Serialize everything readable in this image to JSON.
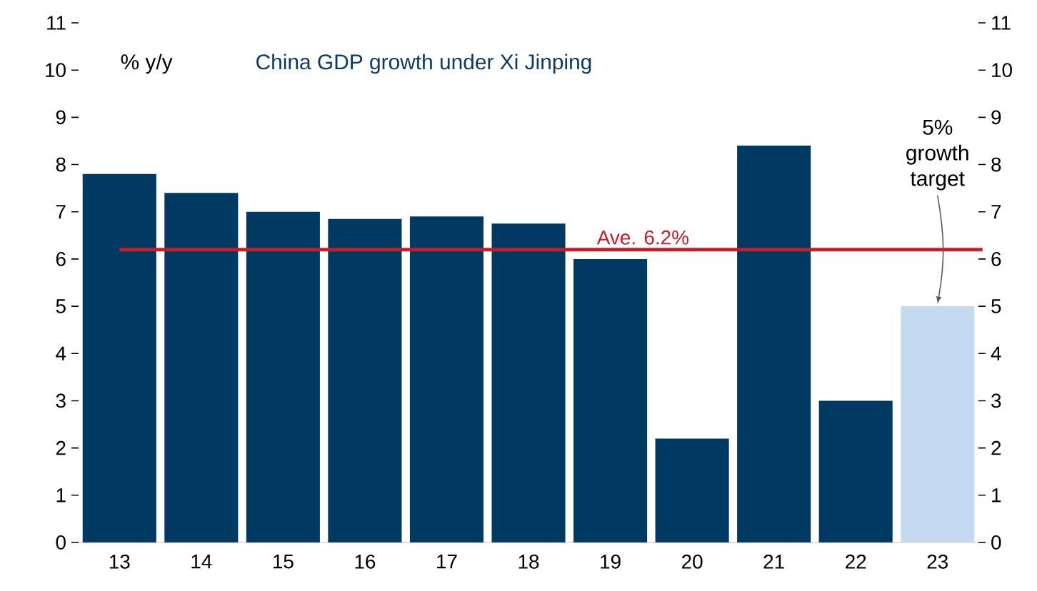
{
  "chart_data": {
    "type": "bar",
    "title": "China GDP growth under Xi Jinping",
    "ylabel": "% y/y",
    "categories": [
      "13",
      "14",
      "15",
      "16",
      "17",
      "18",
      "19",
      "20",
      "21",
      "22",
      "23"
    ],
    "values": [
      7.8,
      7.4,
      7.0,
      6.85,
      6.9,
      6.75,
      6.0,
      2.2,
      8.4,
      3.0,
      5.0
    ],
    "colors": [
      "#003a63",
      "#003a63",
      "#003a63",
      "#003a63",
      "#003a63",
      "#003a63",
      "#003a63",
      "#003a63",
      "#003a63",
      "#003a63",
      "#c5daf0"
    ],
    "ylim": [
      0,
      11
    ],
    "yticks": [
      0,
      1,
      2,
      3,
      4,
      5,
      6,
      7,
      8,
      9,
      10,
      11
    ],
    "y2lim": [
      0,
      11
    ],
    "y2ticks": [
      0,
      1,
      2,
      3,
      4,
      5,
      6,
      7,
      8,
      9,
      10,
      11
    ],
    "ref_lines": [
      {
        "axis": "y",
        "value": 6.2,
        "label": "Ave. 6.2%",
        "color": "#c0202a"
      }
    ],
    "annotations": [
      {
        "text": "5% growth target",
        "x": "23",
        "y": 5
      }
    ],
    "grid": false
  }
}
